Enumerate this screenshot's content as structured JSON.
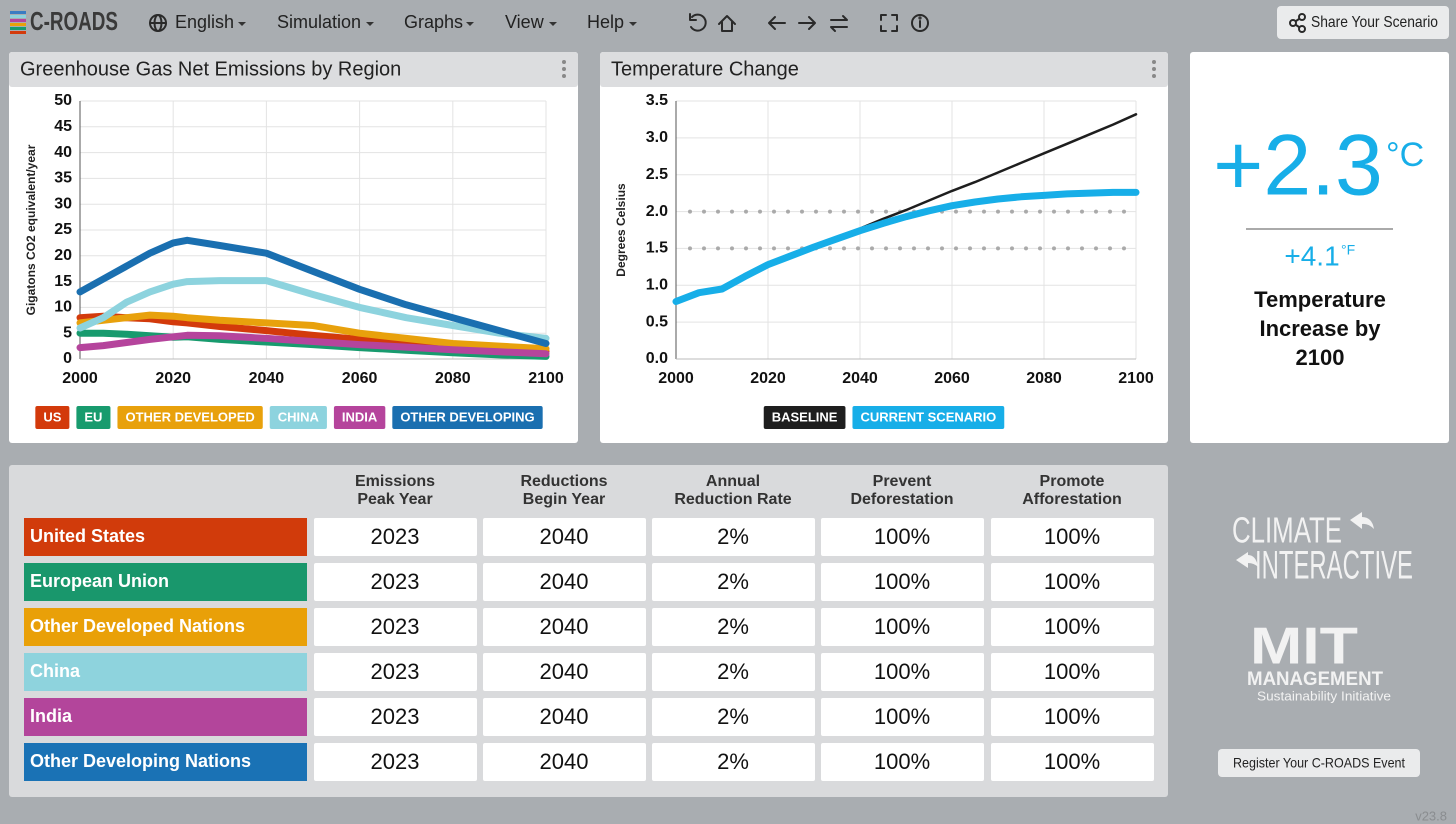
{
  "header": {
    "logo": "C-ROADS",
    "menu": [
      "English",
      "Simulation",
      "Graphs",
      "View",
      "Help"
    ],
    "share": "Share Your Scenario"
  },
  "chart_data": [
    {
      "type": "line",
      "title": "Greenhouse Gas Net Emissions by Region",
      "ylabel": "Gigatons CO2 equivalent/year",
      "x": [
        2000,
        2005,
        2010,
        2015,
        2020,
        2023,
        2030,
        2040,
        2050,
        2060,
        2070,
        2080,
        2090,
        2100
      ],
      "xlim": [
        2000,
        2100
      ],
      "xticks": [
        2000,
        2020,
        2040,
        2060,
        2080,
        2100
      ],
      "ylim": [
        0,
        50
      ],
      "yticks": [
        0,
        5,
        10,
        15,
        20,
        25,
        30,
        35,
        40,
        45,
        50
      ],
      "grid": true,
      "series": [
        {
          "name": "US",
          "color": "#d33a0b",
          "values": [
            8,
            8.3,
            8,
            7.8,
            7.2,
            7,
            6.3,
            5.5,
            4.6,
            3.8,
            3.1,
            2.5,
            2,
            1.5
          ]
        },
        {
          "name": "EU",
          "color": "#189b6e",
          "values": [
            5,
            5,
            4.8,
            4.5,
            4.2,
            4.3,
            3.8,
            3.3,
            2.8,
            2.2,
            1.7,
            1.2,
            0.8,
            0.5
          ]
        },
        {
          "name": "OTHER DEVELOPED",
          "color": "#e8a10c",
          "values": [
            7,
            7.5,
            8,
            8.5,
            8.3,
            8,
            7.5,
            7,
            6.5,
            5,
            4,
            3,
            2.5,
            2
          ]
        },
        {
          "name": "CHINA",
          "color": "#8dd3de",
          "values": [
            6,
            8,
            11,
            13,
            14.5,
            15,
            15.2,
            15.2,
            12.5,
            10,
            8,
            6.5,
            5,
            4
          ]
        },
        {
          "name": "INDIA",
          "color": "#b5449c",
          "values": [
            2.2,
            2.6,
            3.2,
            3.8,
            4.3,
            4.6,
            4.5,
            4,
            3.4,
            2.8,
            2.3,
            1.8,
            1.4,
            1
          ]
        },
        {
          "name": "OTHER DEVELOPING",
          "color": "#1a6fb0",
          "values": [
            13,
            15.5,
            18,
            20.5,
            22.5,
            23,
            22,
            20.5,
            17,
            13.5,
            10.5,
            8,
            5.5,
            3
          ]
        }
      ]
    },
    {
      "type": "line",
      "title": "Temperature Change",
      "ylabel": "Degrees Celsius",
      "x": [
        2000,
        2005,
        2010,
        2015,
        2020,
        2025,
        2030,
        2035,
        2040,
        2045,
        2050,
        2055,
        2060,
        2065,
        2070,
        2075,
        2080,
        2085,
        2090,
        2095,
        2100
      ],
      "xlim": [
        2000,
        2100
      ],
      "xticks": [
        2000,
        2020,
        2040,
        2060,
        2080,
        2100
      ],
      "ylim": [
        0,
        3.5
      ],
      "yticks": [
        {
          "value": 0,
          "label": "0.0"
        },
        0.5,
        {
          "value": 1,
          "label": "1.0"
        },
        1.5,
        {
          "value": 2,
          "label": "2.0"
        },
        2.5,
        {
          "value": 3,
          "label": "3.0"
        },
        3.5
      ],
      "grid": true,
      "reference_lines": [
        1.5,
        2
      ],
      "series": [
        {
          "name": "BASELINE",
          "color": "#1e1e1e",
          "values": [
            0.78,
            0.9,
            0.95,
            1.12,
            1.28,
            1.4,
            1.53,
            1.65,
            1.77,
            1.9,
            2.02,
            2.15,
            2.28,
            2.4,
            2.53,
            2.66,
            2.79,
            2.92,
            3.05,
            3.18,
            3.32
          ]
        },
        {
          "name": "CURRENT SCENARIO",
          "color": "#17aee8",
          "values": [
            0.78,
            0.9,
            0.95,
            1.12,
            1.28,
            1.4,
            1.52,
            1.63,
            1.74,
            1.84,
            1.93,
            2.01,
            2.08,
            2.13,
            2.17,
            2.2,
            2.22,
            2.24,
            2.25,
            2.26,
            2.26
          ]
        }
      ]
    }
  ],
  "summary": {
    "celsius": "+2.3",
    "celsius_unit": "°C",
    "fahrenheit": "+4.1",
    "fahrenheit_unit": "°F",
    "caption": [
      "Temperature",
      "Increase by",
      "2100"
    ]
  },
  "table": {
    "columns": [
      [
        "Emissions",
        "Peak Year"
      ],
      [
        "Reductions",
        "Begin Year"
      ],
      [
        "Annual",
        "Reduction Rate"
      ],
      [
        "Prevent",
        "Deforestation"
      ],
      [
        "Promote",
        "Afforestation"
      ]
    ],
    "rows": [
      {
        "name": "United States",
        "color": "#d13b0b",
        "cells": [
          "2023",
          "2040",
          "2%",
          "100%",
          "100%"
        ]
      },
      {
        "name": "European Union",
        "color": "#19976c",
        "cells": [
          "2023",
          "2040",
          "2%",
          "100%",
          "100%"
        ]
      },
      {
        "name": "Other Developed Nations",
        "color": "#e9a008",
        "cells": [
          "2023",
          "2040",
          "2%",
          "100%",
          "100%"
        ]
      },
      {
        "name": "China",
        "color": "#8ed3dd",
        "cells": [
          "2023",
          "2040",
          "2%",
          "100%",
          "100%"
        ]
      },
      {
        "name": "India",
        "color": "#b3459b",
        "cells": [
          "2023",
          "2040",
          "2%",
          "100%",
          "100%"
        ]
      },
      {
        "name": "Other Developing Nations",
        "color": "#1a72b5",
        "cells": [
          "2023",
          "2040",
          "2%",
          "100%",
          "100%"
        ]
      }
    ]
  },
  "sponsors": {
    "climate_interactive": [
      "CLIMATE",
      "INTERACTIVE"
    ],
    "mit": [
      "MIT",
      "MANAGEMENT",
      "Sustainability Initiative"
    ]
  },
  "footer": {
    "register": "Register Your C-ROADS Event",
    "version": "v23.8"
  }
}
